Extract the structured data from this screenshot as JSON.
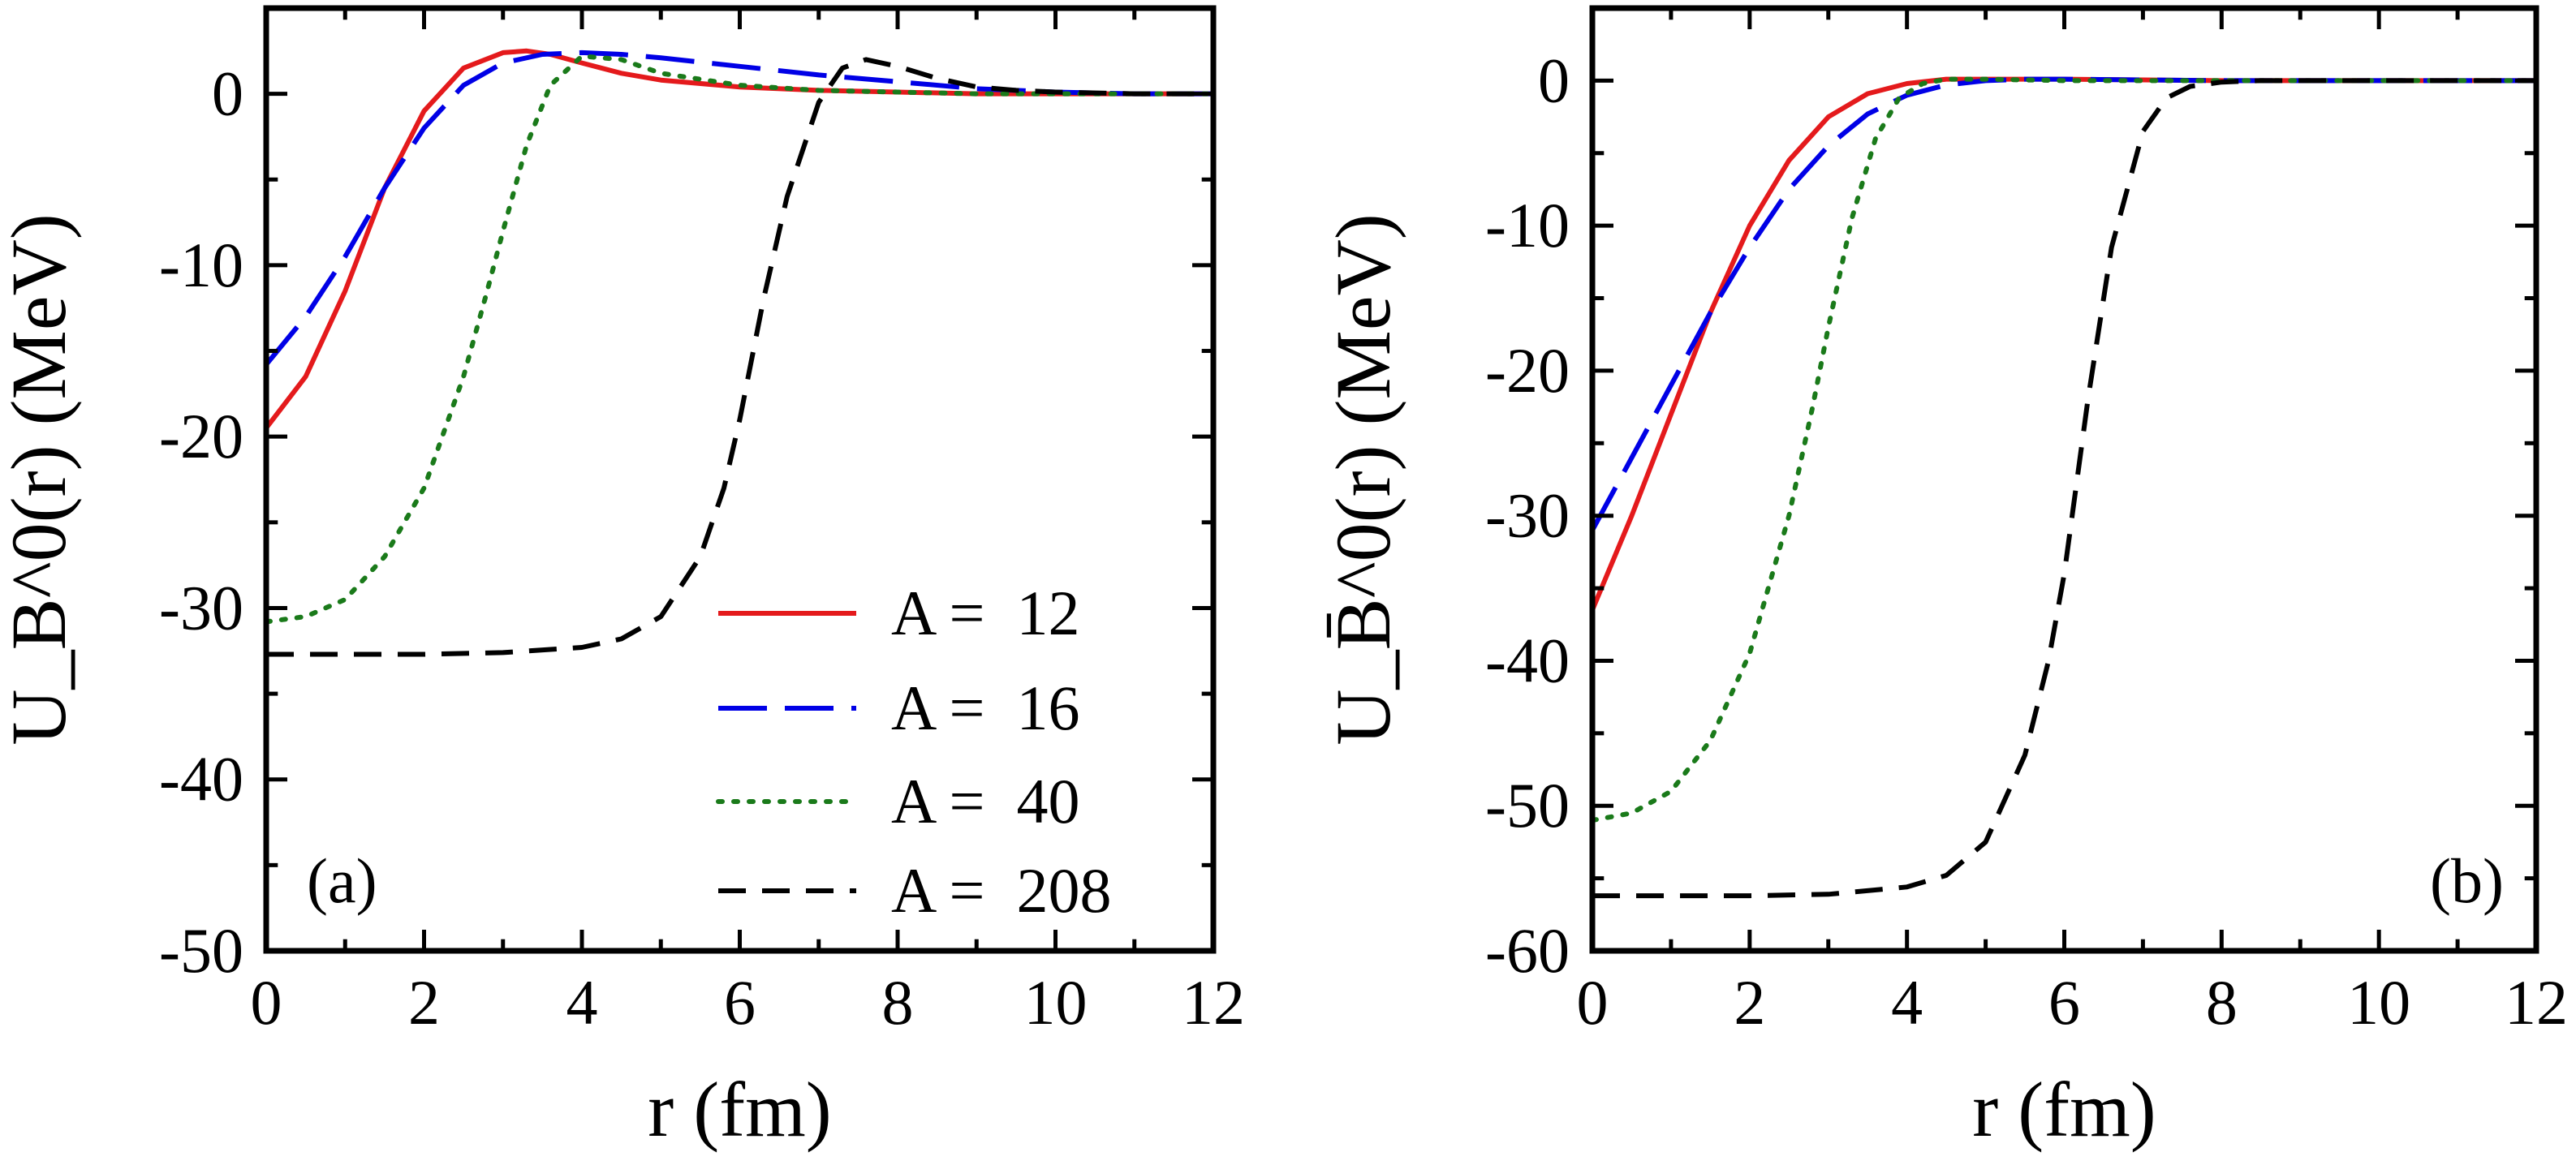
{
  "chart_data": [
    {
      "type": "line",
      "panel_label": "(a)",
      "xlabel": "r (fm)",
      "ylabel": "U_B^0(r) (MeV)",
      "xlim": [
        0,
        12
      ],
      "ylim": [
        -50,
        5
      ],
      "xticks": [
        0,
        2,
        4,
        6,
        8,
        10,
        12
      ],
      "xtick_labels": [
        "0",
        "2",
        "4",
        "6",
        "8",
        "10",
        "12"
      ],
      "yticks": [
        0,
        -10,
        -20,
        -30,
        -40,
        -50
      ],
      "ytick_labels": [
        "0",
        "-10",
        "-20",
        "-30",
        "-40",
        "-50"
      ],
      "grid": false,
      "legend_position": "bottom-right",
      "series": [
        {
          "name": "A =  12",
          "color": "#e41a1c",
          "dash": "solid",
          "x": [
            0,
            0.5,
            1.0,
            1.5,
            2.0,
            2.5,
            3.0,
            3.3,
            3.6,
            4.0,
            4.5,
            5.0,
            6.0,
            7.0,
            8.0,
            9.0,
            10.0,
            11.0,
            12.0
          ],
          "y": [
            -19.5,
            -16.5,
            -11.5,
            -5.5,
            -1.0,
            1.5,
            2.4,
            2.5,
            2.3,
            1.8,
            1.2,
            0.8,
            0.4,
            0.2,
            0.1,
            0.0,
            0.0,
            0.0,
            0.0
          ]
        },
        {
          "name": "A =  16",
          "color": "#0000e6",
          "dash": "long-dash",
          "x": [
            0,
            0.5,
            1.0,
            1.5,
            2.0,
            2.5,
            3.0,
            3.5,
            4.0,
            4.5,
            5.0,
            6.0,
            7.0,
            8.0,
            9.0,
            10.0,
            11.0,
            12.0
          ],
          "y": [
            -15.8,
            -13.0,
            -9.5,
            -5.5,
            -2.0,
            0.5,
            1.8,
            2.3,
            2.4,
            2.3,
            2.1,
            1.6,
            1.1,
            0.7,
            0.3,
            0.1,
            0.0,
            0.0
          ]
        },
        {
          "name": "A =  40",
          "color": "#1a7a1a",
          "dash": "dotted",
          "x": [
            0,
            0.5,
            1.0,
            1.5,
            2.0,
            2.5,
            2.8,
            3.0,
            3.3,
            3.6,
            4.0,
            4.5,
            5.0,
            6.0,
            7.0,
            8.0,
            9.0,
            10.0,
            11.0,
            12.0
          ],
          "y": [
            -30.8,
            -30.5,
            -29.5,
            -27.0,
            -23.0,
            -16.5,
            -11.5,
            -8.0,
            -3.0,
            0.5,
            2.2,
            2.0,
            1.2,
            0.5,
            0.2,
            0.1,
            0.0,
            0.0,
            0.0,
            0.0
          ]
        },
        {
          "name": "A =  208",
          "color": "#000000",
          "dash": "dashed",
          "x": [
            0,
            1.0,
            2.0,
            3.0,
            4.0,
            4.5,
            5.0,
            5.5,
            5.8,
            6.0,
            6.3,
            6.6,
            7.0,
            7.3,
            7.6,
            8.0,
            8.5,
            9.0,
            9.5,
            10.0,
            11.0,
            12.0
          ],
          "y": [
            -32.7,
            -32.7,
            -32.7,
            -32.6,
            -32.3,
            -31.8,
            -30.5,
            -27.0,
            -23.0,
            -19.0,
            -12.0,
            -6.0,
            -0.5,
            1.5,
            2.0,
            1.6,
            0.9,
            0.4,
            0.2,
            0.1,
            0.0,
            0.0
          ]
        }
      ]
    },
    {
      "type": "line",
      "panel_label": "(b)",
      "xlabel": "r (fm)",
      "ylabel": "U_B̄^0(r) (MeV)",
      "xlim": [
        0,
        12
      ],
      "ylim": [
        -60,
        5
      ],
      "xticks": [
        0,
        2,
        4,
        6,
        8,
        10,
        12
      ],
      "xtick_labels": [
        "0",
        "2",
        "4",
        "6",
        "8",
        "10",
        "12"
      ],
      "yticks": [
        0,
        -10,
        -20,
        -30,
        -40,
        -50,
        -60
      ],
      "ytick_labels": [
        "0",
        "-10",
        "-20",
        "-30",
        "-40",
        "-50",
        "-60"
      ],
      "grid": false,
      "series": [
        {
          "name": "A =  12",
          "color": "#e41a1c",
          "dash": "solid",
          "x": [
            0,
            0.5,
            1.0,
            1.5,
            2.0,
            2.5,
            3.0,
            3.5,
            4.0,
            4.5,
            5.0,
            6.0,
            8.0,
            12.0
          ],
          "y": [
            -36.5,
            -30.0,
            -23.0,
            -16.0,
            -10.0,
            -5.5,
            -2.5,
            -0.9,
            -0.2,
            0.1,
            0.1,
            0.1,
            0.0,
            0.0
          ]
        },
        {
          "name": "A =  16",
          "color": "#0000e6",
          "dash": "long-dash",
          "x": [
            0,
            0.5,
            1.0,
            1.5,
            2.0,
            2.5,
            3.0,
            3.5,
            4.0,
            4.5,
            5.0,
            5.5,
            6.0,
            8.0,
            12.0
          ],
          "y": [
            -31.0,
            -26.0,
            -21.0,
            -16.0,
            -11.5,
            -7.5,
            -4.5,
            -2.3,
            -1.0,
            -0.3,
            0.0,
            0.1,
            0.1,
            0.0,
            0.0
          ]
        },
        {
          "name": "A =  40",
          "color": "#1a7a1a",
          "dash": "dotted",
          "x": [
            0,
            0.5,
            1.0,
            1.5,
            2.0,
            2.5,
            2.8,
            3.0,
            3.3,
            3.6,
            3.9,
            4.2,
            4.5,
            5.0,
            6.0,
            8.0,
            12.0
          ],
          "y": [
            -51.0,
            -50.5,
            -49.0,
            -45.5,
            -39.5,
            -30.0,
            -22.5,
            -17.0,
            -9.5,
            -4.0,
            -1.2,
            -0.2,
            0.1,
            0.1,
            0.0,
            0.0,
            0.0
          ]
        },
        {
          "name": "A =  208",
          "color": "#000000",
          "dash": "dashed",
          "x": [
            0,
            1.0,
            2.0,
            3.0,
            4.0,
            4.5,
            5.0,
            5.5,
            5.8,
            6.0,
            6.3,
            6.6,
            7.0,
            7.3,
            7.6,
            8.0,
            8.5,
            9.0,
            10.0,
            12.0
          ],
          "y": [
            -56.2,
            -56.2,
            -56.2,
            -56.1,
            -55.6,
            -54.8,
            -52.5,
            -46.5,
            -40.0,
            -34.0,
            -22.0,
            -11.5,
            -3.5,
            -1.2,
            -0.4,
            -0.1,
            0.0,
            0.0,
            0.0,
            0.0
          ]
        }
      ]
    }
  ]
}
